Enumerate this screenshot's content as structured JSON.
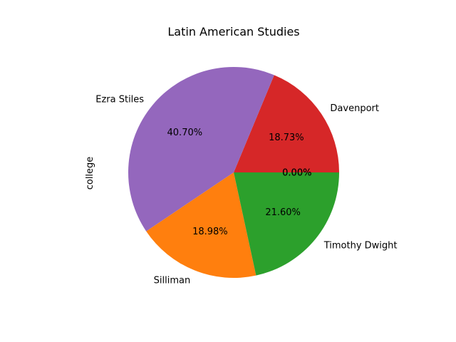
{
  "chart_data": {
    "type": "pie",
    "title": "Latin American Studies",
    "ylabel": "college",
    "start_angle_deg": 0,
    "direction": "counterclockwise",
    "slices": [
      {
        "label": "",
        "value": 0.0,
        "pct_label": "0.00%",
        "color": "#1f77b4"
      },
      {
        "label": "",
        "value": 0.0,
        "pct_label": "0.00%",
        "color": "#ff7f0e"
      },
      {
        "label": "Davenport",
        "value": 18.73,
        "pct_label": "18.73%",
        "color": "#d62728"
      },
      {
        "label": "Ezra Stiles",
        "value": 40.7,
        "pct_label": "40.70%",
        "color": "#9467bd"
      },
      {
        "label": "Silliman",
        "value": 18.98,
        "pct_label": "18.98%",
        "color": "#ff7f0e"
      },
      {
        "label": "Timothy Dwight",
        "value": 21.6,
        "pct_label": "21.60%",
        "color": "#2ca02c"
      }
    ]
  }
}
